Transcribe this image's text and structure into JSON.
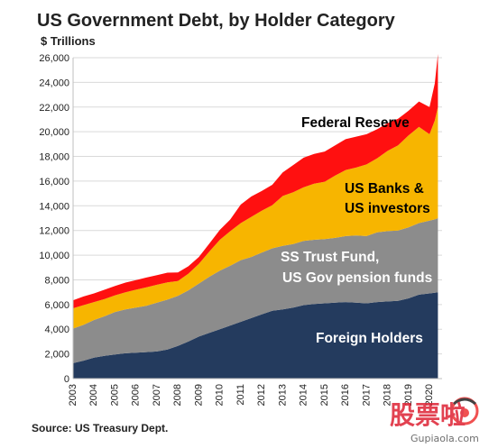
{
  "chart_data": {
    "type": "area",
    "stacked": true,
    "title": "US Government Debt, by Holder Category",
    "ylabel": "$ Trillions",
    "source": "Source: US Treasury Dept.",
    "ylim": [
      0,
      26000
    ],
    "yticks": [
      0,
      2000,
      4000,
      6000,
      8000,
      10000,
      12000,
      14000,
      16000,
      18000,
      20000,
      22000,
      24000,
      26000
    ],
    "ytick_labels": [
      "0",
      "2,000",
      "4,000",
      "6,000",
      "8,000",
      "10,000",
      "12,000",
      "14,000",
      "16,000",
      "18,000",
      "20,000",
      "22,000",
      "24,000",
      "26,000"
    ],
    "xlim": [
      2003.0,
      2020.6
    ],
    "xticks": [
      2003,
      2004,
      2005,
      2006,
      2007,
      2008,
      2009,
      2010,
      2011,
      2012,
      2013,
      2014,
      2015,
      2016,
      2017,
      2018,
      2019,
      2020
    ],
    "xtick_labels": [
      "2003",
      "2004",
      "2005",
      "2006",
      "2007",
      "2008",
      "2009",
      "2010",
      "2011",
      "2012",
      "2013",
      "2014",
      "2015",
      "2016",
      "2017",
      "2018",
      "2019",
      "2020"
    ],
    "grid": true,
    "x": [
      2003.0,
      2003.5,
      2004.0,
      2004.5,
      2005.0,
      2005.5,
      2006.0,
      2006.5,
      2007.0,
      2007.5,
      2008.0,
      2008.5,
      2009.0,
      2009.5,
      2010.0,
      2010.5,
      2011.0,
      2011.5,
      2012.0,
      2012.5,
      2013.0,
      2013.5,
      2014.0,
      2014.5,
      2015.0,
      2015.5,
      2016.0,
      2016.5,
      2017.0,
      2017.5,
      2018.0,
      2018.5,
      2019.0,
      2019.5,
      2020.0,
      2020.25,
      2020.4
    ],
    "series": [
      {
        "name": "Foreign Holders",
        "color": "#243b5e",
        "values": [
          1250,
          1450,
          1700,
          1850,
          1950,
          2050,
          2100,
          2150,
          2200,
          2350,
          2650,
          3000,
          3400,
          3700,
          4000,
          4300,
          4600,
          4900,
          5200,
          5500,
          5600,
          5750,
          5950,
          6050,
          6100,
          6150,
          6200,
          6150,
          6100,
          6200,
          6250,
          6300,
          6500,
          6800,
          6900,
          6950,
          7000
        ]
      },
      {
        "name": "SS Trust Fund, US Gov pension funds",
        "color": "#8c8c8c",
        "values": [
          2800,
          2900,
          3050,
          3200,
          3450,
          3550,
          3650,
          3750,
          3950,
          4050,
          4050,
          4150,
          4300,
          4550,
          4750,
          4850,
          5000,
          4950,
          5000,
          5050,
          5150,
          5150,
          5200,
          5200,
          5200,
          5250,
          5350,
          5450,
          5450,
          5650,
          5700,
          5700,
          5750,
          5800,
          5900,
          5950,
          6000
        ]
      },
      {
        "name": "US Banks & US investors",
        "color": "#f7b500",
        "values": [
          1650,
          1600,
          1450,
          1400,
          1350,
          1400,
          1450,
          1500,
          1450,
          1400,
          1200,
          1350,
          1600,
          2050,
          2500,
          2800,
          3000,
          3250,
          3400,
          3500,
          4050,
          4200,
          4350,
          4550,
          4650,
          5050,
          5350,
          5500,
          5800,
          6000,
          6500,
          6900,
          7450,
          7800,
          7000,
          8000,
          9000
        ]
      },
      {
        "name": "Federal Reserve",
        "color": "#ff1010",
        "values": [
          650,
          700,
          700,
          750,
          750,
          780,
          780,
          790,
          780,
          780,
          700,
          600,
          550,
          650,
          800,
          950,
          1500,
          1650,
          1600,
          1650,
          1900,
          2200,
          2400,
          2400,
          2450,
          2450,
          2500,
          2500,
          2450,
          2350,
          2250,
          2150,
          2000,
          2050,
          2200,
          3000,
          4300
        ]
      }
    ],
    "annotations": [
      "Federal Reserve",
      "US Banks &",
      "US investors",
      "SS Trust Fund,",
      "US Gov pension funds",
      "Foreign Holders"
    ]
  },
  "watermark": {
    "chars": "股票啦",
    "url": "Gupiaola.com"
  }
}
